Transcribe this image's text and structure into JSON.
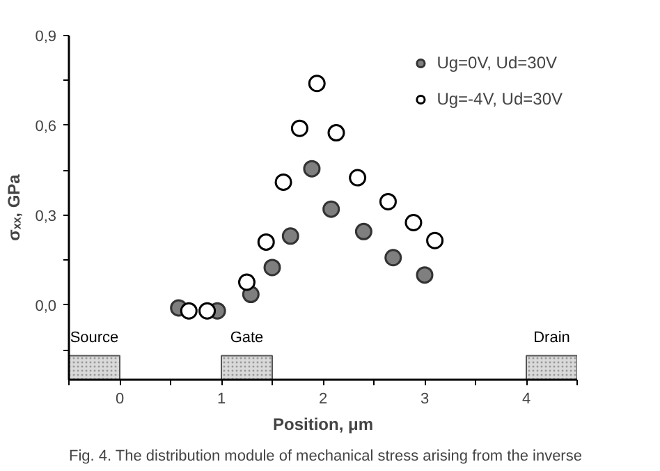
{
  "chart_data": {
    "type": "scatter",
    "xlabel": "Position, μm",
    "ylabel": "σₓₓ, GPa",
    "xlim": [
      -0.5,
      4.5
    ],
    "ylim": [
      -0.25,
      0.9
    ],
    "xticks": [
      {
        "value": -0.5,
        "label": null
      },
      0,
      {
        "value": 0.5,
        "label": null
      },
      1,
      {
        "value": 1.5,
        "label": null
      },
      2,
      {
        "value": 2.5,
        "label": null
      },
      3,
      {
        "value": 3.5,
        "label": null
      },
      4,
      {
        "value": 4.5,
        "label": null
      }
    ],
    "yticks": [
      {
        "value": -0.15,
        "label": null
      },
      {
        "value": 0,
        "label": "0,0"
      },
      {
        "value": 0.15,
        "label": null
      },
      {
        "value": 0.3,
        "label": "0,3"
      },
      {
        "value": 0.45,
        "label": null
      },
      {
        "value": 0.6,
        "label": "0,6"
      },
      {
        "value": 0.75,
        "label": null
      },
      {
        "value": 0.9,
        "label": "0,9"
      }
    ],
    "series": [
      {
        "name": "Ug=0V, Ud=30V",
        "color": "#7f7f7f",
        "x": [
          0.58,
          0.96,
          1.29,
          1.5,
          1.68,
          1.89,
          2.08,
          2.4,
          2.69,
          3.0
        ],
        "values": [
          -0.01,
          -0.02,
          0.035,
          0.125,
          0.23,
          0.455,
          0.32,
          0.245,
          0.158,
          0.1
        ]
      },
      {
        "name": "Ug=-4V, Ud=30V",
        "color": "#ffffff",
        "x": [
          0.68,
          0.86,
          1.25,
          1.44,
          1.61,
          1.77,
          1.94,
          2.13,
          2.34,
          2.64,
          2.89,
          3.1
        ],
        "values": [
          -0.02,
          -0.02,
          0.076,
          0.21,
          0.41,
          0.59,
          0.74,
          0.575,
          0.425,
          0.345,
          0.275,
          0.215
        ]
      }
    ],
    "marker": "circle",
    "legend": "top right",
    "grid": false,
    "bands": [
      {
        "axis": "x",
        "from": -0.5,
        "to": 0,
        "label": "Source",
        "color": "#d9d9d9"
      },
      {
        "axis": "x",
        "from": 1,
        "to": 1.5,
        "label": "Gate",
        "color": "#d9d9d9"
      },
      {
        "axis": "x",
        "from": 4,
        "to": 4.5,
        "label": "Drain",
        "color": "#d9d9d9"
      }
    ],
    "annotations": [
      "Fig. 4. The distribution module of mechanical stress arising from the inverse"
    ]
  }
}
